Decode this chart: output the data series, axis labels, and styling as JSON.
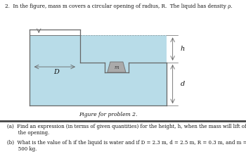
{
  "title_text": "2.  In the figure, mass m covers a circular opening of radius, R.  The liquid has density ρ.",
  "caption": "Figure for problem 2.",
  "part_a": "(a)  Find an expression (in terms of given quantities) for the height, h, when the mass will lift off\n       the opening.",
  "part_b": "(b)  What is the value of h if the liquid is water and if D = 2.3 m, d = 2.5 m, R = 0.3 m, and m =\n       500 kg.",
  "bg_color": "#ffffff",
  "liquid_color": "#b8dce8",
  "container_edge_color": "#666666",
  "mass_face_color": "#aaaaaa",
  "mass_edge_color": "#777777",
  "separator_color": "#444444",
  "text_color": "#111111",
  "label_D": "D",
  "label_h": "h",
  "label_d": "d",
  "label_m": "m"
}
